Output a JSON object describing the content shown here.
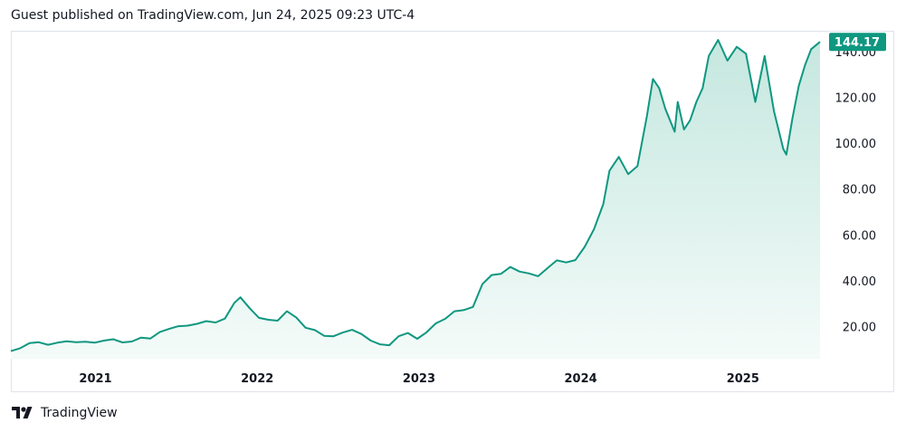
{
  "header": {
    "text": "Guest published on TradingView.com, Jun 24, 2025 09:23 UTC-4"
  },
  "footer": {
    "brand": "TradingView"
  },
  "colors": {
    "line": "#0f9780",
    "area_top": "#c5e7df",
    "area_bottom": "#f4fbf9",
    "last_label_bg": "#0f9780"
  },
  "chart_data": {
    "type": "area",
    "title": "",
    "xlabel": "",
    "ylabel": "",
    "x_ticks": [
      "2021",
      "2022",
      "2023",
      "2024",
      "2025"
    ],
    "y_ticks": [
      "20.00",
      "40.00",
      "60.00",
      "80.00",
      "100.00",
      "120.00",
      "140.00"
    ],
    "ylim": [
      6,
      149
    ],
    "last_value_label": "144.17",
    "grid": false,
    "series": [
      {
        "x": [
          "2020-06-24",
          "2020-07-15",
          "2020-08-05",
          "2020-08-26",
          "2020-09-16",
          "2020-10-07",
          "2020-10-28",
          "2020-11-18",
          "2020-12-09",
          "2020-12-30",
          "2021-01-20",
          "2021-02-10",
          "2021-03-03",
          "2021-03-24",
          "2021-04-14",
          "2021-05-05",
          "2021-05-26",
          "2021-06-16",
          "2021-07-07",
          "2021-07-28",
          "2021-08-18",
          "2021-09-08",
          "2021-09-29",
          "2021-10-20",
          "2021-11-10",
          "2021-11-24",
          "2021-12-15",
          "2022-01-05",
          "2022-01-26",
          "2022-02-16",
          "2022-03-09",
          "2022-03-30",
          "2022-04-20",
          "2022-05-11",
          "2022-06-01",
          "2022-06-22",
          "2022-07-13",
          "2022-08-03",
          "2022-08-24",
          "2022-09-14",
          "2022-10-05",
          "2022-10-26",
          "2022-11-16",
          "2022-12-07",
          "2022-12-28",
          "2023-01-18",
          "2023-02-08",
          "2023-03-01",
          "2023-03-22",
          "2023-04-12",
          "2023-05-03",
          "2023-05-24",
          "2023-06-14",
          "2023-07-05",
          "2023-07-26",
          "2023-08-16",
          "2023-09-06",
          "2023-09-27",
          "2023-10-18",
          "2023-11-08",
          "2023-11-29",
          "2023-12-20",
          "2024-01-10",
          "2024-01-31",
          "2024-02-21",
          "2024-03-06",
          "2024-03-27",
          "2024-04-17",
          "2024-05-08",
          "2024-05-29",
          "2024-06-12",
          "2024-06-26",
          "2024-07-10",
          "2024-07-31",
          "2024-08-07",
          "2024-08-21",
          "2024-09-04",
          "2024-09-18",
          "2024-10-02",
          "2024-10-16",
          "2024-11-06",
          "2024-11-27",
          "2024-12-18",
          "2025-01-08",
          "2025-01-29",
          "2025-02-19",
          "2025-03-12",
          "2025-04-02",
          "2025-04-09",
          "2025-04-23",
          "2025-05-07",
          "2025-05-21",
          "2025-06-04",
          "2025-06-24"
        ],
        "values": [
          9.3,
          10.6,
          12.8,
          13.2,
          12.1,
          13.0,
          13.6,
          13.2,
          13.4,
          13.0,
          13.9,
          14.5,
          13.1,
          13.5,
          15.2,
          14.8,
          17.6,
          19.0,
          20.2,
          20.4,
          21.2,
          22.4,
          21.8,
          23.5,
          30.3,
          32.8,
          28.0,
          23.8,
          23.0,
          22.6,
          26.7,
          24.0,
          19.5,
          18.5,
          16.0,
          15.8,
          17.4,
          18.6,
          16.8,
          13.9,
          12.3,
          11.9,
          15.8,
          17.2,
          14.7,
          17.5,
          21.4,
          23.4,
          26.7,
          27.2,
          28.6,
          38.5,
          42.5,
          43.0,
          46.0,
          44.0,
          43.2,
          42.0,
          45.5,
          48.9,
          48.0,
          49.0,
          54.8,
          62.5,
          73.5,
          88.0,
          94.0,
          86.5,
          90.0,
          111.5,
          128.0,
          124.0,
          115.0,
          105.0,
          118.0,
          106.0,
          110.0,
          118.0,
          124.0,
          138.0,
          145.0,
          136.0,
          142.0,
          139.0,
          118.0,
          138.0,
          114.0,
          97.5,
          95.0,
          111.0,
          125.0,
          134.0,
          141.0,
          144.17
        ]
      }
    ]
  }
}
